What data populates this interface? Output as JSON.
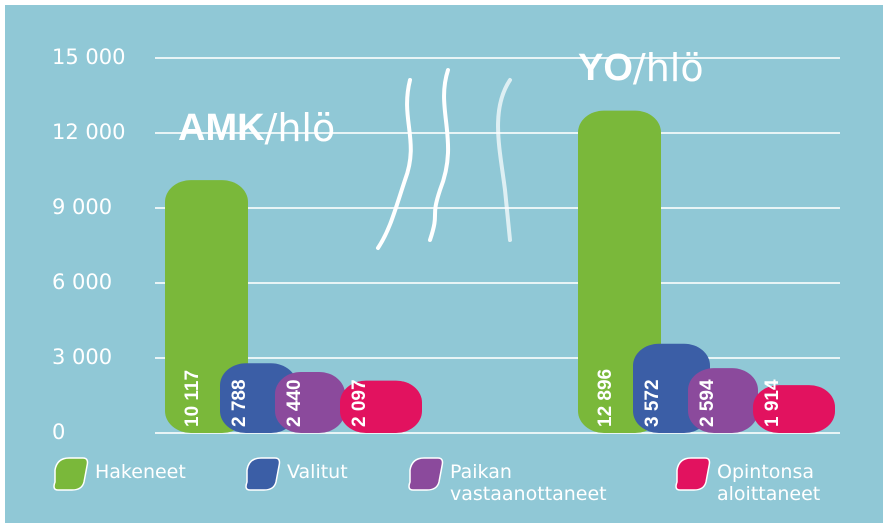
{
  "chart_data": {
    "type": "bar",
    "categories": [
      "AMK",
      "YO"
    ],
    "unit_label": "/hlö",
    "ylim": [
      0,
      15000
    ],
    "yticks": [
      0,
      {
        "value": 3000,
        "label": "3 000"
      },
      {
        "value": 6000,
        "label": "6 000"
      },
      {
        "value": 9000,
        "label": "9 000"
      },
      {
        "value": 12000,
        "label": "12 000"
      },
      {
        "value": 15000,
        "label": "15 000"
      }
    ],
    "grid": true,
    "series": [
      {
        "name": "Hakeneet",
        "color": "#7ab83a",
        "values": [
          10117,
          12896
        ],
        "value_labels": [
          "10 117",
          "12 896"
        ]
      },
      {
        "name": "Valitut",
        "color": "#3b5ea6",
        "values": [
          2788,
          3572
        ],
        "value_labels": [
          "2 788",
          "3 572"
        ]
      },
      {
        "name": "Paikan vastaanottaneet",
        "color": "#8b4a9c",
        "values": [
          2440,
          2594
        ],
        "value_labels": [
          "2 440",
          "2 594"
        ]
      },
      {
        "name": "Opintonsa aloittaneet",
        "color": "#e2125f",
        "values": [
          2097,
          1914
        ],
        "value_labels": [
          "2 097",
          "1 914"
        ]
      }
    ]
  }
}
